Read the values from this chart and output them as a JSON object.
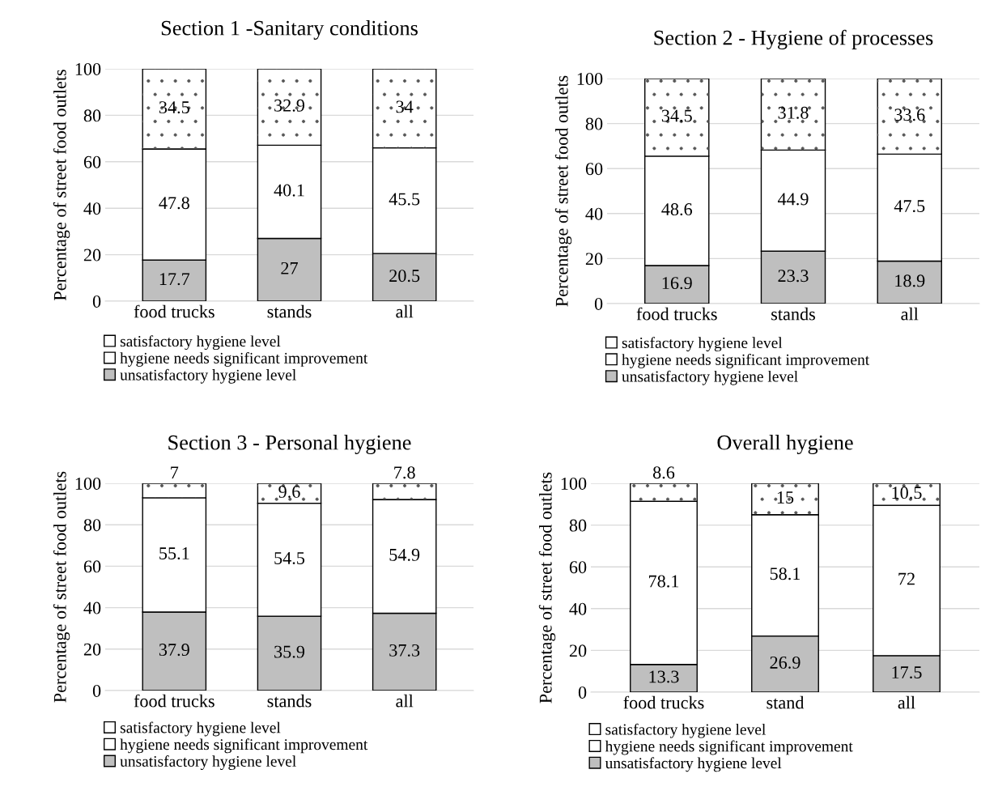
{
  "chart_data": [
    {
      "type": "bar",
      "title": "Section 1 -Sanitary conditions",
      "ylabel": "Percentage of street food outlets",
      "categories": [
        "food trucks",
        "stands",
        "all"
      ],
      "stacked": true,
      "ylim": [
        0,
        100
      ],
      "yticks": [
        0,
        20,
        40,
        60,
        80,
        100
      ],
      "grid": "y",
      "legend": "bottom",
      "data_labels": true,
      "series": [
        {
          "name": "unsatisfactory hygiene level",
          "color": "#bfbfbf",
          "values": [
            17.7,
            27,
            20.5
          ]
        },
        {
          "name": "hygiene needs significant improvement",
          "color": "#ffffff",
          "values": [
            47.8,
            40.1,
            45.5
          ]
        },
        {
          "name": "satisfactory hygiene level",
          "color": "#ffffff",
          "values": [
            34.5,
            32.9,
            34
          ]
        }
      ]
    },
    {
      "type": "bar",
      "title": "Section 2 - Hygiene of processes",
      "ylabel": "Percentage of street food outlets",
      "categories": [
        "food trucks",
        "stands",
        "all"
      ],
      "stacked": true,
      "ylim": [
        0,
        100
      ],
      "yticks": [
        0,
        20,
        40,
        60,
        80,
        100
      ],
      "grid": "y",
      "legend": "bottom",
      "data_labels": true,
      "series": [
        {
          "name": "unsatisfactory hygiene level",
          "color": "#bfbfbf",
          "values": [
            16.9,
            23.3,
            18.9
          ]
        },
        {
          "name": "hygiene needs significant improvement",
          "color": "#ffffff",
          "values": [
            48.6,
            44.9,
            47.5
          ]
        },
        {
          "name": "satisfactory hygiene level",
          "color": "#ffffff",
          "values": [
            34.5,
            31.8,
            33.6
          ]
        }
      ]
    },
    {
      "type": "bar",
      "title": "Section 3 - Personal hygiene",
      "ylabel": "Percentage of street food outlets",
      "categories": [
        "food trucks",
        "stands",
        "all"
      ],
      "stacked": true,
      "ylim": [
        0,
        100
      ],
      "yticks": [
        0,
        20,
        40,
        60,
        80,
        100
      ],
      "grid": "y",
      "legend": "bottom",
      "data_labels": true,
      "series": [
        {
          "name": "unsatisfactory hygiene level",
          "color": "#bfbfbf",
          "values": [
            37.9,
            35.9,
            37.3
          ]
        },
        {
          "name": "hygiene needs significant improvement",
          "color": "#ffffff",
          "values": [
            55.1,
            54.5,
            54.9
          ]
        },
        {
          "name": "satisfactory hygiene level",
          "color": "#ffffff",
          "values": [
            7,
            9.6,
            7.8
          ]
        }
      ]
    },
    {
      "type": "bar",
      "title": "Overall hygiene",
      "ylabel": "Percentage of street food outlets",
      "categories": [
        "food trucks",
        "stand",
        "all"
      ],
      "stacked": true,
      "ylim": [
        0,
        100
      ],
      "yticks": [
        0,
        20,
        40,
        60,
        80,
        100
      ],
      "grid": "y",
      "legend": "bottom",
      "data_labels": true,
      "series": [
        {
          "name": "unsatisfactory hygiene level",
          "color": "#bfbfbf",
          "values": [
            13.3,
            26.9,
            17.5
          ]
        },
        {
          "name": "hygiene needs significant improvement",
          "color": "#ffffff",
          "values": [
            78.1,
            58.1,
            72
          ]
        },
        {
          "name": "satisfactory hygiene level",
          "color": "#ffffff",
          "values": [
            8.6,
            15,
            10.5
          ]
        }
      ]
    }
  ]
}
